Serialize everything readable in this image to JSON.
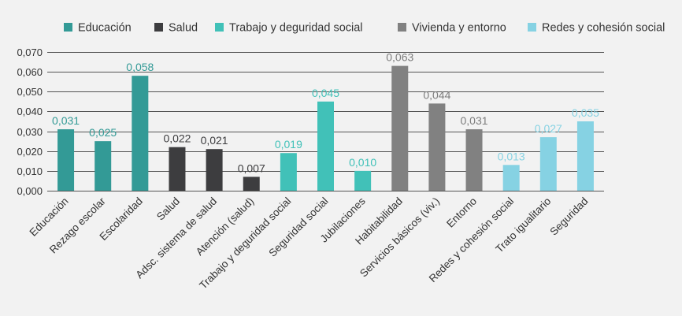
{
  "chart_data": {
    "type": "bar",
    "title": "",
    "xlabel": "",
    "ylabel": "",
    "ylim": [
      0,
      0.07
    ],
    "yticks": [
      0.0,
      0.01,
      0.02,
      0.03,
      0.04,
      0.05,
      0.06,
      0.07
    ],
    "ytick_labels": [
      "0,000",
      "0,010",
      "0,020",
      "0,030",
      "0,040",
      "0,050",
      "0,060",
      "0,070"
    ],
    "grid": true,
    "legend_position": "top",
    "groups": [
      {
        "name": "Educación",
        "color": "#339a96",
        "label_color": "#339a96"
      },
      {
        "name": "Salud",
        "color": "#3d3d3f",
        "label_color": "#3d3d3f"
      },
      {
        "name": "Trabajo y deguridad social",
        "color": "#41c1b8",
        "label_color": "#41c1b8"
      },
      {
        "name": "Vivienda y entorno",
        "color": "#818181",
        "label_color": "#7c7c7c"
      },
      {
        "name": "Redes y cohesión social",
        "color": "#86d2e3",
        "label_color": "#86d2e3"
      }
    ],
    "categories": [
      "Educación",
      "Rezago escolar",
      "Escolaridad",
      "Salud",
      "Adsc. sistema de salud",
      "Atención (salud)",
      "Trabajo y deguridad social",
      "Seguridad social",
      "Jubilaciones",
      "Habitabilidad",
      "Servicios básicos (viv.)",
      "Entorno",
      "Redes y cohesión social",
      "Trato igualitario",
      "Seguridad"
    ],
    "values": [
      0.031,
      0.025,
      0.058,
      0.022,
      0.021,
      0.007,
      0.019,
      0.045,
      0.01,
      0.063,
      0.044,
      0.031,
      0.013,
      0.027,
      0.035
    ],
    "value_labels": [
      "0,031",
      "0,025",
      "0,058",
      "0,022",
      "0,021",
      "0,007",
      "0,019",
      "0,045",
      "0,010",
      "0,063",
      "0,044",
      "0,031",
      "0,013",
      "0,027",
      "0,035"
    ],
    "group_index": [
      0,
      0,
      0,
      1,
      1,
      1,
      2,
      2,
      2,
      3,
      3,
      3,
      4,
      4,
      4
    ]
  }
}
